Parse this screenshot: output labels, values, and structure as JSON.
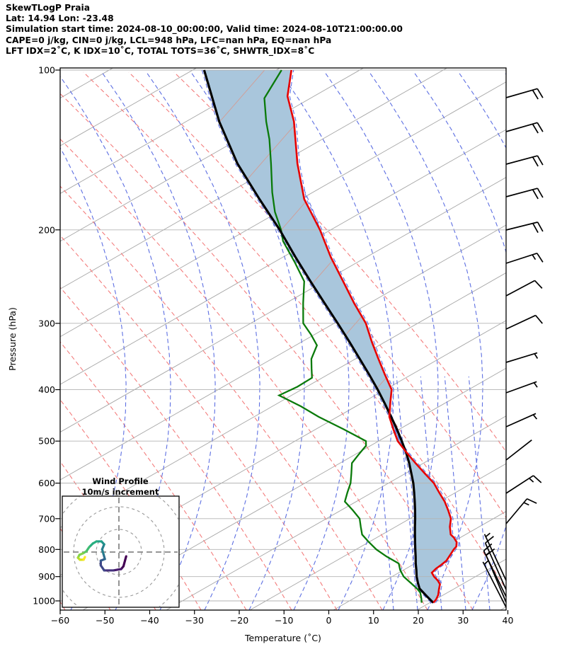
{
  "header": {
    "line1": "SkewTLogP Praia",
    "line2": "Lat: 14.94   Lon: -23.48",
    "line3": "Simulation start time: 2024-08-10_00:00:00, Valid time: 2024-08-10T21:00:00.00",
    "line4": "CAPE=0 j/kg, CIN=0 j/kg, LCL=948 hPa, LFC=nan hPa, EQ=nan hPa",
    "line5": "LFT IDX=2˚C, K IDX=10˚C, TOTAL TOTS=36˚C, SHWTR_IDX=8˚C"
  },
  "axes": {
    "x_label": "Temperature (˚C)",
    "y_label": "Pressure (hPa)",
    "x_tick_labels": [
      "−60",
      "−50",
      "−40",
      "−30",
      "−20",
      "−10",
      "0",
      "10",
      "20",
      "30",
      "40"
    ],
    "x_ticks_c": [
      -60,
      -50,
      -40,
      -30,
      -20,
      -10,
      0,
      10,
      20,
      30,
      40
    ],
    "y_tick_labels": [
      "100",
      "200",
      "300",
      "400",
      "500",
      "600",
      "700",
      "800",
      "900",
      "1000"
    ],
    "y_ticks_hpa": [
      100,
      200,
      300,
      400,
      500,
      600,
      700,
      800,
      900,
      1000
    ]
  },
  "inset": {
    "title_line1": "Wind Profile",
    "title_line2": "10m/s increment"
  },
  "colors": {
    "temperature_line": "#e60000",
    "dewpoint_line": "#0a7a0a",
    "parcel_line": "#000000",
    "cape_shade": "#a9c6dc",
    "isotherm_gray": "#a6a6a6",
    "dry_adiabat_red": "#f37c7c",
    "moist_adiabat_blue": "#5d6fe2",
    "under_shade_line": "#cfa09a",
    "gridline": "#b3b3b3",
    "hodograph_ring": "#999999"
  },
  "chart_data": {
    "type": "line",
    "chart_kind": "skewt_logp_sounding",
    "title": "SkewTLogP Praia",
    "xlabel": "Temperature (˚C)",
    "ylabel": "Pressure (hPa)",
    "xlim_c": [
      -60,
      40
    ],
    "pressure_range_hpa": [
      1050,
      100
    ],
    "y_scale": "log",
    "grid": true,
    "legend": "none",
    "series": [
      {
        "name": "temperature",
        "color": "#e60000",
        "points_p_t": [
          [
            1008,
            22.4
          ],
          [
            995,
            22.6
          ],
          [
            975,
            22.5
          ],
          [
            950,
            21.9
          ],
          [
            930,
            21.5
          ],
          [
            915,
            20.5
          ],
          [
            900,
            19.2
          ],
          [
            885,
            18.2
          ],
          [
            870,
            18.6
          ],
          [
            855,
            19.3
          ],
          [
            840,
            19.9
          ],
          [
            820,
            20.0
          ],
          [
            800,
            20.1
          ],
          [
            790,
            20.3
          ],
          [
            775,
            19.8
          ],
          [
            760,
            18.6
          ],
          [
            750,
            17.5
          ],
          [
            725,
            16.3
          ],
          [
            700,
            15.5
          ],
          [
            675,
            13.8
          ],
          [
            650,
            11.9
          ],
          [
            625,
            9.5
          ],
          [
            600,
            7.1
          ],
          [
            575,
            3.8
          ],
          [
            550,
            0.4
          ],
          [
            525,
            -3.0
          ],
          [
            500,
            -6.4
          ],
          [
            475,
            -8.9
          ],
          [
            450,
            -11.4
          ],
          [
            425,
            -12.9
          ],
          [
            400,
            -14.4
          ],
          [
            375,
            -17.8
          ],
          [
            350,
            -21.3
          ],
          [
            325,
            -25.0
          ],
          [
            300,
            -28.7
          ],
          [
            275,
            -33.9
          ],
          [
            250,
            -39.2
          ],
          [
            225,
            -45.1
          ],
          [
            200,
            -51.0
          ],
          [
            175,
            -58.5
          ],
          [
            150,
            -64.6
          ],
          [
            125,
            -70.8
          ],
          [
            112,
            -75.5
          ],
          [
            100,
            -78.0
          ]
        ]
      },
      {
        "name": "dewpoint",
        "color": "#0a7a0a",
        "points_p_t": [
          [
            1008,
            19.8
          ],
          [
            990,
            19.2
          ],
          [
            965,
            18.2
          ],
          [
            950,
            17.1
          ],
          [
            925,
            14.8
          ],
          [
            900,
            12.4
          ],
          [
            875,
            10.8
          ],
          [
            850,
            9.6
          ],
          [
            825,
            6.0
          ],
          [
            800,
            2.8
          ],
          [
            775,
            0.2
          ],
          [
            750,
            -2.3
          ],
          [
            725,
            -3.6
          ],
          [
            700,
            -4.9
          ],
          [
            675,
            -7.5
          ],
          [
            650,
            -10.4
          ],
          [
            625,
            -11.0
          ],
          [
            600,
            -11.5
          ],
          [
            575,
            -12.6
          ],
          [
            550,
            -13.8
          ],
          [
            530,
            -13.4
          ],
          [
            510,
            -12.9
          ],
          [
            500,
            -13.5
          ],
          [
            475,
            -20.0
          ],
          [
            450,
            -27.2
          ],
          [
            430,
            -32.5
          ],
          [
            410,
            -38.8
          ],
          [
            395,
            -35.8
          ],
          [
            380,
            -33.7
          ],
          [
            365,
            -35.0
          ],
          [
            350,
            -36.3
          ],
          [
            330,
            -36.8
          ],
          [
            315,
            -39.5
          ],
          [
            300,
            -42.7
          ],
          [
            275,
            -45.3
          ],
          [
            250,
            -47.9
          ],
          [
            230,
            -52.5
          ],
          [
            210,
            -57.8
          ],
          [
            200,
            -59.7
          ],
          [
            185,
            -63.4
          ],
          [
            170,
            -66.5
          ],
          [
            150,
            -70.5
          ],
          [
            135,
            -74.0
          ],
          [
            125,
            -77.0
          ],
          [
            113,
            -80.4
          ],
          [
            100,
            -80.2
          ]
        ]
      },
      {
        "name": "parcel_path",
        "color": "#000000",
        "points_p_t": [
          [
            1008,
            22.4
          ],
          [
            980,
            20.1
          ],
          [
            948,
            17.5
          ],
          [
            925,
            16.4
          ],
          [
            900,
            15.3
          ],
          [
            875,
            14.4
          ],
          [
            850,
            13.4
          ],
          [
            825,
            12.5
          ],
          [
            800,
            11.5
          ],
          [
            775,
            10.5
          ],
          [
            750,
            9.5
          ],
          [
            725,
            8.5
          ],
          [
            700,
            7.5
          ],
          [
            675,
            6.4
          ],
          [
            650,
            5.2
          ],
          [
            625,
            3.9
          ],
          [
            600,
            2.5
          ],
          [
            575,
            0.8
          ],
          [
            550,
            -1.0
          ],
          [
            525,
            -3.1
          ],
          [
            500,
            -5.5
          ],
          [
            475,
            -8.1
          ],
          [
            450,
            -11.0
          ],
          [
            425,
            -14.1
          ],
          [
            400,
            -17.5
          ],
          [
            375,
            -21.3
          ],
          [
            350,
            -25.5
          ],
          [
            325,
            -30.0
          ],
          [
            300,
            -35.0
          ],
          [
            275,
            -40.5
          ],
          [
            250,
            -46.5
          ],
          [
            225,
            -53.0
          ],
          [
            200,
            -60.0
          ],
          [
            175,
            -68.5
          ],
          [
            150,
            -78.0
          ],
          [
            125,
            -87.5
          ],
          [
            100,
            -97.5
          ]
        ]
      }
    ],
    "shaded_region": {
      "between": [
        "parcel_path",
        "temperature"
      ],
      "color": "#a9c6dc"
    },
    "wind_barbs": [
      {
        "p_hpa": 113,
        "speed_ms": 20,
        "from_dir": "E"
      },
      {
        "p_hpa": 130,
        "speed_ms": 20,
        "from_dir": "E"
      },
      {
        "p_hpa": 150,
        "speed_ms": 20,
        "from_dir": "E"
      },
      {
        "p_hpa": 174,
        "speed_ms": 20,
        "from_dir": "E"
      },
      {
        "p_hpa": 200,
        "speed_ms": 20,
        "from_dir": "E"
      },
      {
        "p_hpa": 231,
        "speed_ms": 15,
        "from_dir": "E"
      },
      {
        "p_hpa": 266,
        "speed_ms": 10,
        "from_dir": "E"
      },
      {
        "p_hpa": 308,
        "speed_ms": 10,
        "from_dir": "E"
      },
      {
        "p_hpa": 356,
        "speed_ms": 5,
        "from_dir": "ESE"
      },
      {
        "p_hpa": 406,
        "speed_ms": 5,
        "from_dir": "ESE"
      },
      {
        "p_hpa": 471,
        "speed_ms": 5,
        "from_dir": "ESE"
      },
      {
        "p_hpa": 542,
        "speed_ms": 2,
        "from_dir": "SE"
      },
      {
        "p_hpa": 627,
        "speed_ms": 15,
        "from_dir": "SE"
      },
      {
        "p_hpa": 716,
        "speed_ms": 15,
        "from_dir": "SE"
      },
      {
        "p_hpa": 915,
        "speed_ms": 5,
        "from_dir": "NW"
      },
      {
        "p_hpa": 952,
        "speed_ms": 10,
        "from_dir": "NW"
      },
      {
        "p_hpa": 982,
        "speed_ms": 15,
        "from_dir": "NW"
      },
      {
        "p_hpa": 1006,
        "speed_ms": 10,
        "from_dir": "NW"
      },
      {
        "p_hpa": 1028,
        "speed_ms": 5,
        "from_dir": "NW"
      }
    ],
    "hodograph": {
      "ring_increment_ms": 10,
      "u_ms": [
        3.2,
        2.0,
        1.0,
        -2.4,
        -6.5,
        -8.0,
        -8.0,
        -6.2,
        -6.8,
        -7.4,
        -6.5,
        -7.7,
        -9.9,
        -11.5,
        -13.1,
        -14.4,
        -15.9,
        -17.4,
        -18.1,
        -17.2,
        -15.6,
        -15.0
      ],
      "v_ms": [
        -1.9,
        -6.3,
        -7.5,
        -8.1,
        -8.1,
        -5.9,
        -3.8,
        -3.1,
        -0.9,
        1.2,
        3.4,
        4.7,
        4.7,
        3.8,
        2.2,
        0.3,
        -0.6,
        -1.2,
        -2.5,
        -3.4,
        -3.4,
        -2.2
      ]
    }
  }
}
